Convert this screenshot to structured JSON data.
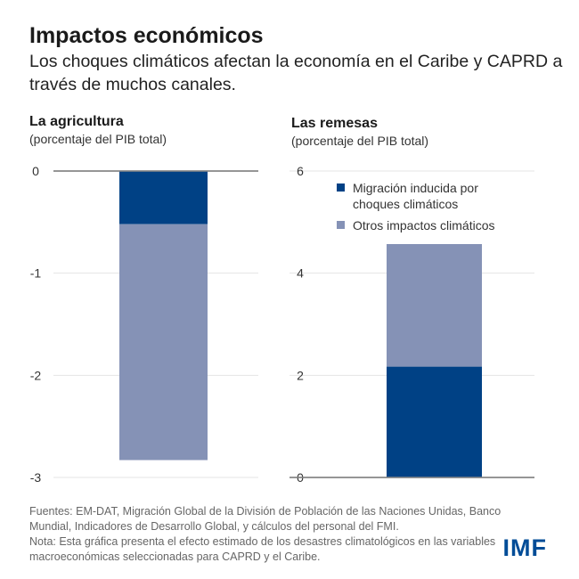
{
  "header": {
    "title": "Impactos económicos",
    "subtitle": "Los choques climáticos afectan la economía en el Caribe y CAPRD a través de muchos canales."
  },
  "chart_data": [
    {
      "type": "bar",
      "stacked": true,
      "title": "La agricultura",
      "subtitle": "(porcentaje del PIB total)",
      "ylim": [
        -3,
        0
      ],
      "yticks": [
        0,
        -1,
        -2,
        -3
      ],
      "ytick_labels": [
        "0",
        "-1",
        "-2",
        "-3"
      ],
      "series": [
        {
          "name": "Migración inducida por choques climáticos",
          "values": [
            -0.52
          ],
          "color": "#004185"
        },
        {
          "name": "Otros impactos climáticos",
          "values": [
            -2.31
          ],
          "color": "#8592b6"
        }
      ]
    },
    {
      "type": "bar",
      "stacked": true,
      "title": "Las remesas",
      "subtitle": "(porcentaje del PIB total)",
      "ylim": [
        0,
        6
      ],
      "yticks": [
        6,
        4,
        2,
        0
      ],
      "ytick_labels": [
        "6",
        "4",
        "2",
        "0"
      ],
      "series": [
        {
          "name": "Migración inducida por choques climáticos",
          "values": [
            2.17
          ],
          "color": "#004185"
        },
        {
          "name": "Otros impactos climáticos",
          "values": [
            2.4
          ],
          "color": "#8592b6"
        }
      ],
      "legend": "top-right"
    }
  ],
  "legend": [
    "Migración inducida por",
    "choques climáticos",
    "Otros impactos climáticos"
  ],
  "notes": [
    "Fuentes: EM-DAT, Migración Global de la División de Población de las Naciones Unidas, Banco Mundial, Indicadores de Desarrollo Global, y cálculos del personal del FMI.",
    "Nota: Esta gráfica presenta el efecto estimado de los desastres climatológicos en las variables macroeconómicas seleccionadas para CAPRD y el Caribe."
  ],
  "logo": "IMF"
}
